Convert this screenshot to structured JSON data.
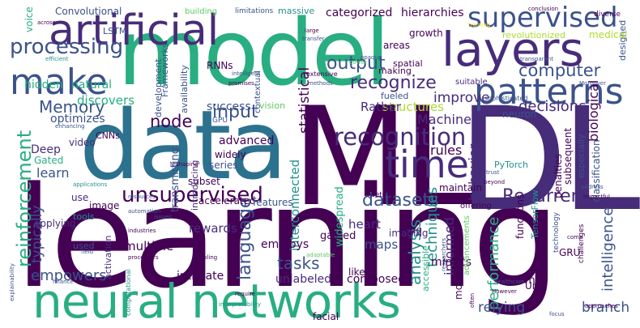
{
  "words": {
    "learning": "learning",
    "data": "data",
    "ML": "ML",
    "DL": "DL",
    "model": "model",
    "neural_networks": "neural networks",
    "artificial": "artificial",
    "layers": "layers",
    "patterns": "patterns",
    "make": "make",
    "supervised": "supervised",
    "time": "time",
    "unsupervised": "unsupervised",
    "reinforcement": "reinforcement",
    "recognition": "recognition",
    "processing": "processing",
    "datasets": "datasets",
    "language": "language",
    "Recurrent": "Recurrent",
    "computer": "computer",
    "Memory": "Memory",
    "output": "output",
    "input": "input",
    "tasks": "tasks",
    "analysis": "analysis",
    "recognize": "recognize",
    "node": "node",
    "decisions": "decisions",
    "Machine": "Machine",
    "rules": "rules",
    "intelligence": "intelligence",
    "performance": "performance",
    "techniques": "techniques",
    "behavior": "behavior",
    "biological": "biological",
    "empowers": "empowers",
    "relying": "relying",
    "branch": "branch",
    "informed": "informed",
    "interconnected": "interconnected",
    "categorized": "categorized",
    "hierarchies": "hierarchies",
    "improve": "improve",
    "statistical": "statistical",
    "success": "success",
    "structures": "structures",
    "Rather": "Rather",
    "discovers": "discovers",
    "learn": "learn",
    "hidden": "hidden",
    "natural": "natural",
    "typically": "typically",
    "optimizes": "optimizes",
    "advanced": "advanced",
    "Deep": "Deep",
    "unlabeled": "unlabeled",
    "heart": "heart",
    "gained": "gained",
    "rewards": "rewards",
    "multiple": "multiple",
    "intricate": "intricate",
    "mimics": "mimics",
    "composed": "composed",
    "known": "known",
    "employs": "employs",
    "maps": "maps",
    "Long": "Long",
    "Unit": "Unit",
    "GRU": "GRU",
    "Convolutional": "Convolutional",
    "LSTM": "LSTM",
    "RNNs": "RNNs",
    "CNNs": "CNNs",
    "voice": "voice",
    "video": "video",
    "image": "image",
    "use": "use",
    "applying": "applying",
    "Gated": "Gated",
    "transmitting": "transmitting",
    "subset": "subset",
    "widespread": "widespread",
    "modeling": "modeling",
    "penalties": "penalties",
    "subsequent": "subsequent",
    "classification": "classification",
    "especially": "especially",
    "designed": "designed",
    "medical": "medical",
    "revolutionized": "revolutionized",
    "diverse": "diverse",
    "spatial": "spatial",
    "areas": "areas",
    "growth": "growth",
    "massive": "massive",
    "building": "building",
    "limitations": "limitations",
    "development": "development",
    "availability": "availability",
    "Frameworks": "Frameworks",
    "contextual": "contextual",
    "making": "making",
    "vision": "vision",
    "fueled": "fueled",
    "widely": "widely",
    "series": "series",
    "introducing": "introducing",
    "accelerated": "accelerated",
    "features": "features",
    "detect": "detect",
    "imaging": "imaging",
    "accessible": "accessible",
    "advancements": "advancements",
    "functions": "functions",
    "TensorFlow": "TensorFlow",
    "PyTorch": "PyTorch",
    "maintain": "maintain",
    "neuron": "neuron",
    "tools": "tools",
    "used": "used",
    "activation": "activation",
    "offering": "offering",
    "like": "like",
    "GPU": "GPU",
    "suitable": "suitable",
    "sophisticated": "sophisticated",
    "extensive": "extensive",
    "Moreover": "Moreover",
    "opaque": "opaque",
    "transparent": "transparent",
    "conclusion": "conclusion",
    "transfer": "transfer",
    "large": "large",
    "across": "across",
    "efficient": "efficient",
    "intelligent": "intelligent",
    "promises": "promises",
    "methods": "methods",
    "technology": "technology",
    "challenges": "challenges",
    "industries": "industries",
    "processors": "processors",
    "computational": "computational",
    "healthcare": "healthcare",
    "However": "However",
    "finance": "finance",
    "explainability": "explainability",
    "interpretability": "interpretability",
    "researchers": "researchers",
    "require": "require",
    "focus": "focus",
    "facial": "facial",
    "impactful": "impactful",
    "address": "address",
    "trust": "trust",
    "beyond": "beyond",
    "come": "come",
    "resources": "resources",
    "automation": "automation",
    "issues": "issues",
    "enabling": "enabling",
    "reshaping": "reshaping",
    "approaches": "approaches",
    "often": "often",
    "field": "field",
    "adaptable": "adaptable",
    "applications": "applications",
    "training": "training",
    "power": "power",
    "enhancing": "enhancing"
  }
}
